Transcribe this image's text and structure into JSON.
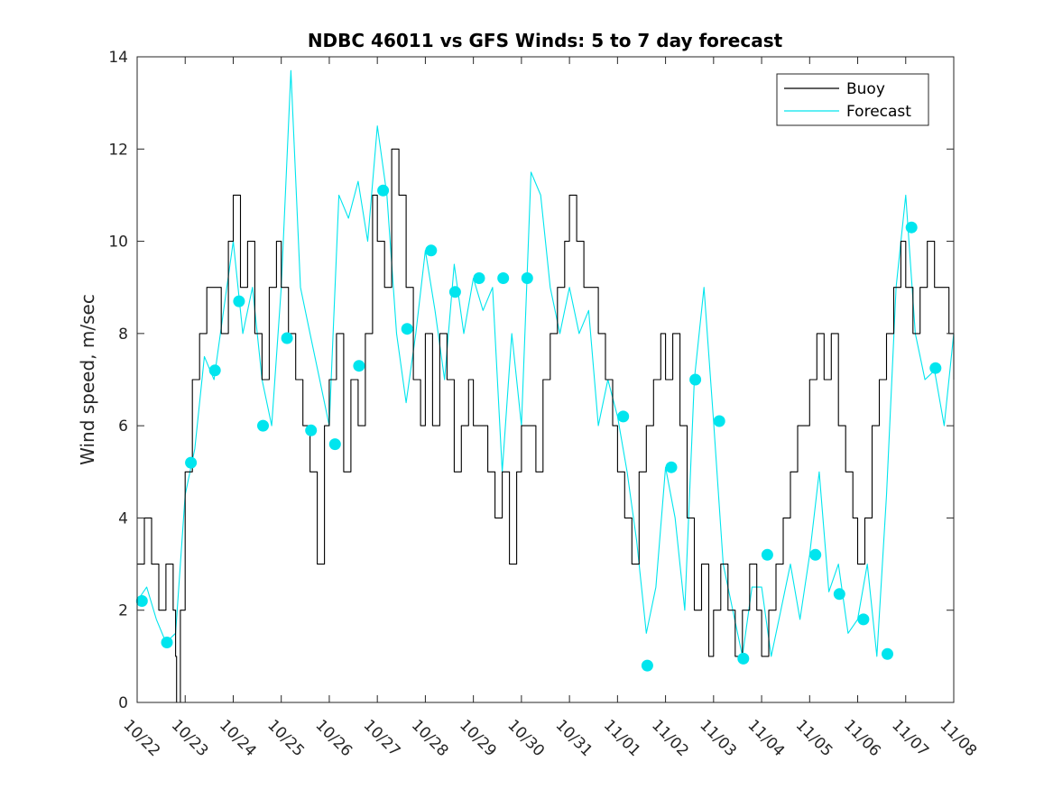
{
  "chart_data": {
    "type": "line",
    "title": "NDBC 46011 vs GFS Winds: 5 to 7 day forecast",
    "xlabel": "",
    "ylabel": "Wind speed, m/sec",
    "xlim": [
      0,
      17
    ],
    "ylim": [
      0,
      14
    ],
    "x_unit": "days since 10/22",
    "x_ticks": [
      0,
      1,
      2,
      3,
      4,
      5,
      6,
      7,
      8,
      9,
      10,
      11,
      12,
      13,
      14,
      15,
      16,
      17
    ],
    "x_tick_labels": [
      "10/22",
      "10/23",
      "10/24",
      "10/25",
      "10/26",
      "10/27",
      "10/28",
      "10/29",
      "10/30",
      "10/31",
      "11/01",
      "11/02",
      "11/03",
      "11/04",
      "11/05",
      "11/06",
      "11/07",
      "11/08"
    ],
    "y_ticks": [
      0,
      2,
      4,
      6,
      8,
      10,
      12,
      14
    ],
    "y_tick_labels": [
      "0",
      "2",
      "4",
      "6",
      "8",
      "10",
      "12",
      "14"
    ],
    "grid": false,
    "legend": {
      "position": "top-right",
      "entries": [
        {
          "label": "Buoy",
          "color": "#000000"
        },
        {
          "label": "Forecast",
          "color": "#00e5ee"
        }
      ]
    },
    "colors": {
      "buoy": "#000000",
      "forecast": "#00e5ee",
      "marker": "#00e5ee",
      "axis": "#262626"
    },
    "series": [
      {
        "name": "Buoy",
        "x": [
          0,
          0.15,
          0.3,
          0.45,
          0.6,
          0.75,
          0.8,
          0.82,
          0.9,
          1.0,
          1.15,
          1.3,
          1.45,
          1.6,
          1.75,
          1.9,
          2.0,
          2.15,
          2.3,
          2.45,
          2.6,
          2.75,
          2.9,
          3.0,
          3.15,
          3.3,
          3.45,
          3.6,
          3.75,
          3.9,
          4.0,
          4.15,
          4.3,
          4.45,
          4.6,
          4.75,
          4.9,
          5.0,
          5.15,
          5.3,
          5.45,
          5.6,
          5.75,
          5.9,
          6.0,
          6.15,
          6.3,
          6.45,
          6.6,
          6.75,
          6.9,
          7.0,
          7.15,
          7.3,
          7.45,
          7.6,
          7.75,
          7.9,
          8.0,
          8.15,
          8.3,
          8.45,
          8.6,
          8.75,
          8.9,
          9.0,
          9.15,
          9.3,
          9.45,
          9.6,
          9.75,
          9.9,
          10.0,
          10.15,
          10.3,
          10.45,
          10.6,
          10.75,
          10.9,
          11.0,
          11.15,
          11.3,
          11.45,
          11.6,
          11.75,
          11.9,
          12.0,
          12.15,
          12.3,
          12.45,
          12.6,
          12.75,
          12.9,
          13.0,
          13.15,
          13.3,
          13.45,
          13.6,
          13.75,
          13.9,
          14.0,
          14.15,
          14.3,
          14.45,
          14.6,
          14.75,
          14.9,
          15.0,
          15.15,
          15.3,
          15.45,
          15.6,
          15.75,
          15.9,
          16.0,
          16.15,
          16.3,
          16.45,
          16.6,
          16.75,
          16.9,
          17.0
        ],
        "y": [
          3,
          4,
          3,
          2,
          3,
          2,
          1,
          0,
          2,
          5,
          7,
          8,
          9,
          9,
          8,
          10,
          11,
          9,
          10,
          8,
          7,
          9,
          10,
          9,
          8,
          7,
          6,
          5,
          3,
          6,
          7,
          8,
          5,
          7,
          6,
          8,
          11,
          10,
          9,
          12,
          11,
          9,
          7,
          6,
          8,
          6,
          8,
          7,
          5,
          6,
          7,
          6,
          6,
          5,
          4,
          5,
          3,
          5,
          6,
          6,
          5,
          7,
          8,
          9,
          10,
          11,
          10,
          9,
          9,
          8,
          7,
          6,
          5,
          4,
          3,
          5,
          6,
          7,
          8,
          7,
          8,
          6,
          4,
          2,
          3,
          1,
          2,
          3,
          2,
          1,
          2,
          3,
          2,
          1,
          2,
          3,
          4,
          5,
          6,
          6,
          7,
          8,
          7,
          8,
          6,
          5,
          4,
          3,
          4,
          6,
          7,
          8,
          9,
          10,
          9,
          8,
          9,
          10,
          9,
          9,
          8,
          7
        ]
      },
      {
        "name": "Forecast",
        "x": [
          0,
          0.2,
          0.4,
          0.6,
          0.8,
          1.0,
          1.2,
          1.4,
          1.6,
          1.8,
          2.0,
          2.2,
          2.4,
          2.6,
          2.8,
          3.0,
          3.2,
          3.4,
          3.6,
          3.8,
          4.0,
          4.2,
          4.4,
          4.6,
          4.8,
          5.0,
          5.2,
          5.4,
          5.6,
          5.8,
          6.0,
          6.2,
          6.4,
          6.6,
          6.8,
          7.0,
          7.2,
          7.4,
          7.6,
          7.8,
          8.0,
          8.2,
          8.4,
          8.6,
          8.8,
          9.0,
          9.2,
          9.4,
          9.6,
          9.8,
          10.0,
          10.2,
          10.4,
          10.6,
          10.8,
          11.0,
          11.2,
          11.4,
          11.6,
          11.8,
          12.0,
          12.2,
          12.4,
          12.6,
          12.8,
          13.0,
          13.2,
          13.4,
          13.6,
          13.8,
          14.0,
          14.2,
          14.4,
          14.6,
          14.8,
          15.0,
          15.2,
          15.4,
          15.6,
          15.8,
          16.0,
          16.2,
          16.4,
          16.6,
          16.8,
          17.0
        ],
        "y": [
          2.2,
          2.5,
          1.8,
          1.3,
          1.5,
          4.5,
          5.5,
          7.5,
          7.0,
          8.5,
          10.0,
          8.0,
          9.0,
          7.0,
          6.0,
          9.0,
          13.7,
          9.0,
          8.0,
          7.0,
          6.0,
          11.0,
          10.5,
          11.3,
          10.0,
          12.5,
          11.0,
          8.0,
          6.5,
          8.0,
          9.8,
          8.5,
          7.0,
          9.5,
          8.0,
          9.2,
          8.5,
          9.0,
          5.0,
          8.0,
          6.0,
          11.5,
          11.0,
          9.0,
          8.0,
          9.0,
          8.0,
          8.5,
          6.0,
          7.0,
          6.2,
          5.0,
          3.5,
          1.5,
          2.5,
          5.1,
          4.0,
          2.0,
          7.0,
          9.0,
          6.1,
          3.0,
          2.0,
          1.0,
          2.5,
          2.5,
          1.0,
          2.0,
          3.0,
          1.8,
          3.2,
          5.0,
          2.4,
          3.0,
          1.5,
          1.8,
          3.0,
          1.0,
          4.5,
          9.0,
          11.0,
          8.0,
          7.0,
          7.2,
          6.0,
          8.0
        ]
      }
    ],
    "markers": {
      "name": "Forecast (daily points)",
      "x": [
        0.1,
        0.62,
        1.12,
        1.62,
        2.12,
        2.62,
        3.12,
        3.62,
        4.12,
        4.62,
        5.12,
        5.62,
        6.12,
        6.62,
        7.12,
        7.62,
        8.12,
        10.12,
        10.62,
        11.12,
        11.62,
        12.12,
        12.62,
        13.12,
        14.12,
        14.62,
        15.12,
        15.62,
        16.12,
        16.62
      ],
      "y": [
        2.2,
        1.3,
        5.2,
        7.2,
        8.7,
        6.0,
        7.9,
        5.9,
        5.6,
        7.3,
        11.1,
        8.1,
        9.8,
        8.9,
        9.2,
        9.2,
        9.2,
        6.2,
        0.8,
        5.1,
        7.0,
        6.1,
        0.95,
        3.2,
        3.2,
        2.35,
        1.8,
        1.05,
        10.3,
        7.25
      ]
    }
  }
}
